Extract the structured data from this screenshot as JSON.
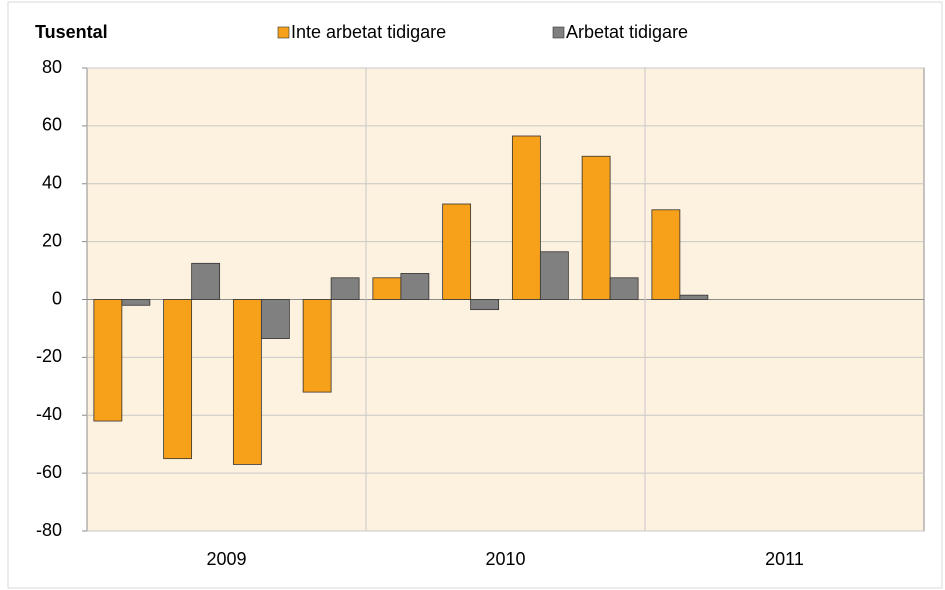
{
  "chart_data": {
    "type": "bar",
    "title": "Tusental",
    "legend": "top",
    "categories": [
      null,
      null,
      null,
      null,
      null,
      null,
      null,
      null,
      null,
      null,
      null,
      null
    ],
    "x_groups": [
      "2009",
      "2010",
      "2011"
    ],
    "series": [
      {
        "name": "Inte arbetat tidigare",
        "color": "#f7a11a",
        "values": [
          -42,
          -55,
          -57,
          -32,
          7.5,
          33,
          56.5,
          49.5,
          31,
          null,
          null,
          null
        ]
      },
      {
        "name": "Arbetat tidigare",
        "color": "#808080",
        "values": [
          -2,
          12.5,
          -13.5,
          7.5,
          9,
          -3.5,
          16.5,
          7.5,
          1.5,
          null,
          null,
          null
        ]
      }
    ],
    "ylim": [
      -80,
      80
    ],
    "yticks": [
      -80,
      -60,
      -40,
      -20,
      0,
      20,
      40,
      60,
      80
    ],
    "grid": true
  }
}
